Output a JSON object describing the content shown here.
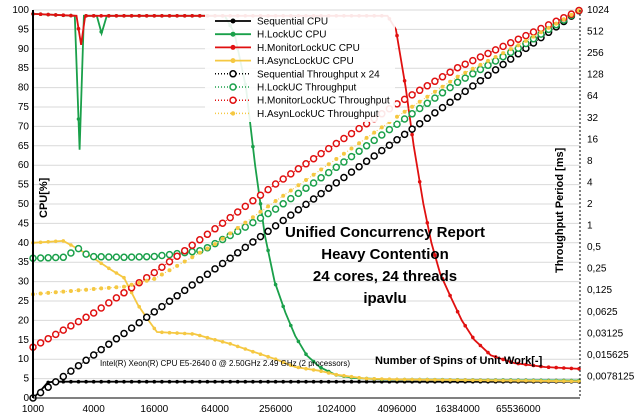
{
  "chart_data": {
    "type": "line",
    "title_lines": [
      "Unified Concurrency Report",
      "Heavy Contention",
      "24 cores, 24 threads",
      "ipavlu"
    ],
    "xlabel": "Number of Spins of Unit Work[-]",
    "ylabel_left": "CPU[%]",
    "ylabel_right": "Throughput Period [ms]",
    "cpu_note": "Intel(R) Xeon(R) CPU E5-2640 0 @ 2.50GHz   2.49 GHz  (2 processors)",
    "x_scale": "log2",
    "x_range": [
      1000,
      268435456
    ],
    "x_ticks": [
      "1000",
      "4000",
      "16000",
      "64000",
      "256000",
      "1024000",
      "4096000",
      "16384000",
      "65536000"
    ],
    "y_left_range": [
      0,
      100
    ],
    "y_left_ticks": [
      "0",
      "5",
      "10",
      "15",
      "20",
      "25",
      "30",
      "35",
      "40",
      "45",
      "50",
      "55",
      "60",
      "65",
      "70",
      "75",
      "80",
      "85",
      "90",
      "95",
      "100"
    ],
    "y_right_scale": "log2",
    "y_right_range": [
      0.00390625,
      1024
    ],
    "y_right_ticks": [
      "0,0078125",
      "0,015625",
      "0,03125",
      "0,0625",
      "0,125",
      "0,25",
      "0,5",
      "1",
      "2",
      "4",
      "8",
      "16",
      "32",
      "64",
      "128",
      "256",
      "512",
      "1024"
    ],
    "legend": [
      {
        "label": "Sequential CPU",
        "color": "#000000",
        "style": "solid",
        "marker": "dot"
      },
      {
        "label": "H.LockUC CPU",
        "color": "#1aa04a",
        "style": "solid",
        "marker": "dot"
      },
      {
        "label": "H.MonitorLockUC CPU",
        "color": "#e01010",
        "style": "solid",
        "marker": "dot"
      },
      {
        "label": "H.AsyncLockUC CPU",
        "color": "#f5c842",
        "style": "solid",
        "marker": "dot"
      },
      {
        "label": "Sequential Throughput x 24",
        "color": "#000000",
        "style": "dotted",
        "marker": "ring"
      },
      {
        "label": "H.LockUC Throughput",
        "color": "#1aa04a",
        "style": "dotted",
        "marker": "ring"
      },
      {
        "label": "H.MonitorLockUC Throughput",
        "color": "#e01010",
        "style": "dotted",
        "marker": "ring"
      },
      {
        "label": "H.AsynLockUC Throughput",
        "color": "#f5c842",
        "style": "dotted",
        "marker": "dot"
      }
    ],
    "series": [
      {
        "name": "Sequential CPU",
        "axis": "left",
        "color": "#000000",
        "kind": "cpu",
        "points": [
          [
            1000,
            0
          ],
          [
            1100,
            1
          ],
          [
            1200,
            2
          ],
          [
            1400,
            4
          ],
          [
            1600,
            4.2
          ],
          [
            268435456,
            4.2
          ]
        ]
      },
      {
        "name": "H.LockUC CPU",
        "axis": "left",
        "color": "#1aa04a",
        "kind": "cpu",
        "points": [
          [
            1000,
            99
          ],
          [
            2600,
            98.5
          ],
          [
            2900,
            64
          ],
          [
            3200,
            98.5
          ],
          [
            4300,
            98.5
          ],
          [
            4800,
            94
          ],
          [
            5400,
            98.5
          ],
          [
            80000,
            98.5
          ],
          [
            100000,
            94
          ],
          [
            130000,
            80
          ],
          [
            160000,
            60
          ],
          [
            200000,
            42
          ],
          [
            250000,
            30
          ],
          [
            320000,
            22
          ],
          [
            400000,
            16
          ],
          [
            520000,
            11
          ],
          [
            700000,
            8
          ],
          [
            1000000,
            6
          ],
          [
            1500000,
            5.2
          ],
          [
            3000000,
            4.8
          ],
          [
            268435456,
            4.5
          ]
        ]
      },
      {
        "name": "H.MonitorLockUC CPU",
        "axis": "left",
        "color": "#e01010",
        "kind": "cpu",
        "points": [
          [
            1000,
            99
          ],
          [
            2700,
            98.5
          ],
          [
            3000,
            91
          ],
          [
            3300,
            98.5
          ],
          [
            3300000,
            98.5
          ],
          [
            4000000,
            95
          ],
          [
            5000000,
            80
          ],
          [
            6000000,
            65
          ],
          [
            7500000,
            50
          ],
          [
            9000000,
            40
          ],
          [
            11000000,
            32
          ],
          [
            14000000,
            26
          ],
          [
            18000000,
            20
          ],
          [
            24000000,
            15
          ],
          [
            35000000,
            11
          ],
          [
            60000000,
            9
          ],
          [
            120000000,
            8
          ],
          [
            268435456,
            7.5
          ]
        ]
      },
      {
        "name": "H.AsyncLockUC CPU",
        "axis": "left",
        "color": "#f5c842",
        "kind": "cpu",
        "points": [
          [
            1000,
            40
          ],
          [
            2000,
            40.5
          ],
          [
            3000,
            38
          ],
          [
            4000,
            36
          ],
          [
            6000,
            33
          ],
          [
            8000,
            31
          ],
          [
            11000,
            24
          ],
          [
            14000,
            20
          ],
          [
            17000,
            17
          ],
          [
            40000,
            16.5
          ],
          [
            64000,
            15
          ],
          [
            90000,
            14
          ],
          [
            150000,
            12
          ],
          [
            256000,
            10
          ],
          [
            400000,
            8
          ],
          [
            700000,
            7
          ],
          [
            1024000,
            6
          ],
          [
            2000000,
            5
          ],
          [
            4096000,
            4.8
          ],
          [
            268435456,
            4.3
          ]
        ]
      },
      {
        "name": "Sequential Throughput x 24",
        "axis": "right",
        "color": "#000000",
        "kind": "thr",
        "points": [
          [
            1000,
            0.00390625
          ],
          [
            268435456,
            1024
          ]
        ]
      },
      {
        "name": "H.LockUC Throughput",
        "axis": "right",
        "color": "#1aa04a",
        "kind": "thr",
        "points": [
          [
            1000,
            0.35
          ],
          [
            2000,
            0.36
          ],
          [
            3000,
            0.5
          ],
          [
            3500,
            0.37
          ],
          [
            8000,
            0.36
          ],
          [
            16000,
            0.37
          ],
          [
            48000,
            0.45
          ],
          [
            120000,
            0.9
          ],
          [
            256000,
            1.7
          ],
          [
            1024000,
            6.5
          ],
          [
            4096000,
            26
          ],
          [
            16384000,
            100
          ],
          [
            65536000,
            300
          ],
          [
            268435456,
            1024
          ]
        ]
      },
      {
        "name": "H.MonitorLockUC Throughput",
        "axis": "right",
        "color": "#e01010",
        "kind": "thr",
        "points": [
          [
            1000,
            0.02
          ],
          [
            4000,
            0.06
          ],
          [
            16000,
            0.22
          ],
          [
            64000,
            0.9
          ],
          [
            256000,
            3.8
          ],
          [
            1024000,
            14
          ],
          [
            4096000,
            50
          ],
          [
            16384000,
            160
          ],
          [
            65536000,
            400
          ],
          [
            268435456,
            1024
          ]
        ]
      },
      {
        "name": "H.AsynLockUC Throughput",
        "axis": "right",
        "color": "#f5c842",
        "kind": "thr",
        "points": [
          [
            1000,
            0.11
          ],
          [
            4000,
            0.13
          ],
          [
            8000,
            0.14
          ],
          [
            16000,
            0.18
          ],
          [
            64000,
            0.55
          ],
          [
            256000,
            2.2
          ],
          [
            1024000,
            8.5
          ],
          [
            4096000,
            33
          ],
          [
            16384000,
            120
          ],
          [
            65536000,
            330
          ],
          [
            268435456,
            1024
          ]
        ]
      }
    ]
  }
}
